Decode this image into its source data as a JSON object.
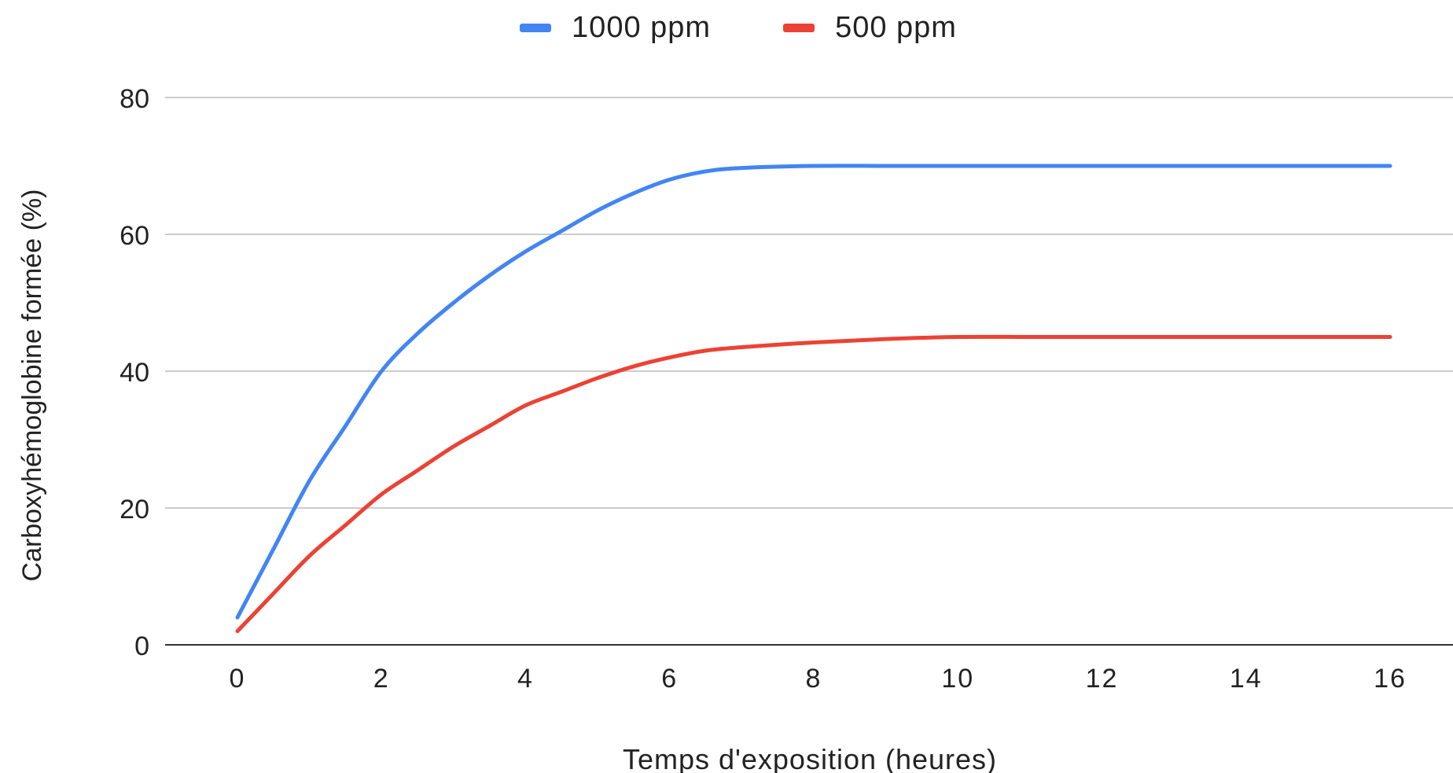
{
  "chart_data": {
    "type": "line",
    "x": [
      0,
      0.5,
      1,
      1.5,
      2,
      2.5,
      3,
      3.5,
      4,
      4.5,
      5,
      5.5,
      6,
      6.5,
      7,
      8,
      9,
      10,
      11,
      12,
      13,
      14,
      15,
      16
    ],
    "series": [
      {
        "name": "1000 ppm",
        "color": "#4285f4",
        "values": [
          4,
          14,
          24,
          32,
          40,
          45.5,
          50,
          54,
          57.5,
          60.5,
          63.5,
          66,
          68,
          69.2,
          69.7,
          70,
          70,
          70,
          70,
          70,
          70,
          70,
          70,
          70
        ]
      },
      {
        "name": "500 ppm",
        "color": "#ea4335",
        "values": [
          2,
          7.5,
          13,
          17.5,
          22,
          25.5,
          29,
          32,
          35,
          37,
          39,
          40.7,
          42,
          43,
          43.5,
          44.2,
          44.7,
          45,
          45,
          45,
          45,
          45,
          45,
          45
        ]
      }
    ],
    "title": "",
    "xlabel": "Temps d'exposition (heures)",
    "ylabel": "Carboxyhémoglobine formée (%)",
    "xlim": [
      -1,
      17
    ],
    "ylim": [
      0,
      80
    ],
    "xticks": [
      0,
      2,
      4,
      6,
      8,
      10,
      12,
      14,
      16
    ],
    "yticks": [
      0,
      20,
      40,
      60,
      80
    ],
    "grid": true,
    "legend_position": "top"
  }
}
